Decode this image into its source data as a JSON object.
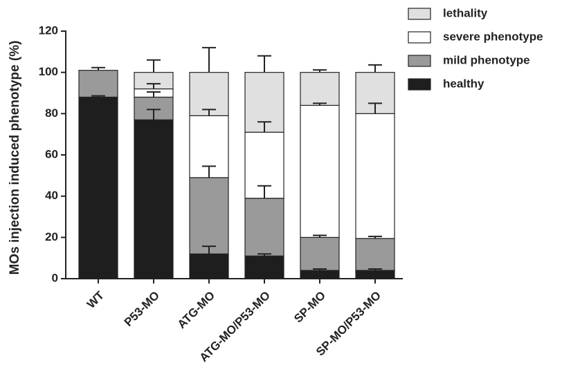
{
  "chart_data": {
    "type": "stacked_bar",
    "y_label": "MOs injection induced phenotype (%)",
    "categories": [
      "WT",
      "P53-MO",
      "ATG-MO",
      "ATG-MO/P53-MO",
      "SP-MO",
      "SP-MO/P53-MO"
    ],
    "series": [
      {
        "name": "healthy",
        "color": "#1e1e1e",
        "values": [
          88,
          77,
          12,
          11,
          4,
          4
        ],
        "errors": [
          0.6,
          5,
          3.7,
          1,
          0.7,
          0.7
        ]
      },
      {
        "name": "mild phenotype",
        "color": "#9a9a9a",
        "values": [
          13,
          11,
          37,
          28,
          16,
          15.5
        ],
        "errors": [
          1.3,
          2.5,
          5.5,
          6,
          1,
          1
        ]
      },
      {
        "name": "severe phenotype",
        "color": "#ffffff",
        "values": [
          0,
          4,
          30,
          32,
          64,
          60.5
        ],
        "errors": [
          null,
          2.5,
          3,
          5,
          1,
          5
        ]
      },
      {
        "name": "lethality",
        "color": "#e0e0e0",
        "values": [
          0,
          8,
          21,
          29,
          16,
          20
        ],
        "errors": [
          null,
          6,
          12,
          8,
          1.2,
          3.6
        ]
      }
    ],
    "ylim": [
      0,
      120
    ],
    "yticks": [
      0,
      20,
      40,
      60,
      80,
      100,
      120
    ]
  }
}
